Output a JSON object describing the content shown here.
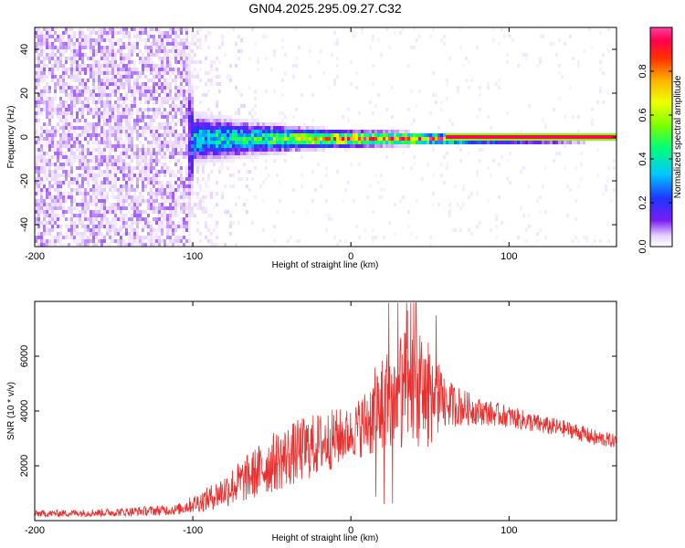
{
  "title": "GN04.2025.295.09.27.C32",
  "colors": {
    "line": "#e8302f",
    "background": "#ffffff",
    "frame": "#000000"
  },
  "chart_data": [
    {
      "type": "heatmap",
      "xlabel": "Height of straight line (km)",
      "ylabel": "Frequency (Hz)",
      "xlim": [
        -200,
        168
      ],
      "ylim": [
        -50,
        50
      ],
      "xticks": [
        -200,
        -100,
        0,
        100
      ],
      "yticks": [
        40,
        20,
        0,
        -20,
        -40
      ],
      "colorbar": {
        "label": "Normalized spectral amplitude",
        "range": [
          0,
          1
        ],
        "ticks": [
          "0.0",
          "0.2",
          "0.4",
          "0.6",
          "0.8"
        ],
        "colormap": [
          "#ffffff",
          "#e6d2ff",
          "#7a1cf2",
          "#1f35ff",
          "#00c8ff",
          "#00ff7a",
          "#7aff00",
          "#f0ff00",
          "#ffb000",
          "#ff3000",
          "#ff0050",
          "#ff40a0"
        ]
      },
      "description_points": [
        {
          "x": -200,
          "spread_hz": 50,
          "amplitude": 0.1
        },
        {
          "x": -105,
          "spread_hz": 50,
          "amplitude": 0.1
        },
        {
          "x": -100,
          "spread_hz": 9,
          "amplitude": 0.45
        },
        {
          "x": -60,
          "spread_hz": 6,
          "amplitude": 0.5
        },
        {
          "x": -30,
          "spread_hz": 4,
          "amplitude": 0.7
        },
        {
          "x": 0,
          "spread_hz": 3,
          "amplitude": 0.9
        },
        {
          "x": 60,
          "spread_hz": 2,
          "amplitude": 0.95
        },
        {
          "x": 168,
          "spread_hz": 1,
          "amplitude": 1.0
        }
      ]
    },
    {
      "type": "line",
      "xlabel": "Height of straight line (km)",
      "ylabel": "SNR (10 * v/v)",
      "xlim": [
        -200,
        168
      ],
      "ylim": [
        0,
        8000
      ],
      "xticks": [
        -200,
        -100,
        0,
        100
      ],
      "yticks": [
        2000,
        4000,
        6000
      ],
      "series": [
        {
          "name": "SNR",
          "envelope_x": [
            -200,
            -150,
            -110,
            -90,
            -70,
            -50,
            -30,
            -10,
            0,
            10,
            20,
            30,
            40,
            50,
            60,
            80,
            100,
            120,
            140,
            155,
            168
          ],
          "envelope_y": [
            250,
            300,
            400,
            800,
            1400,
            2100,
            2600,
            3000,
            3200,
            3600,
            4200,
            4600,
            4800,
            4600,
            4300,
            4000,
            3800,
            3500,
            3300,
            3000,
            2900
          ],
          "noise_amp": [
            120,
            150,
            200,
            450,
            800,
            1100,
            1200,
            1100,
            900,
            1300,
            2000,
            2200,
            2200,
            1900,
            900,
            500,
            400,
            350,
            300,
            300,
            250
          ]
        }
      ]
    }
  ]
}
